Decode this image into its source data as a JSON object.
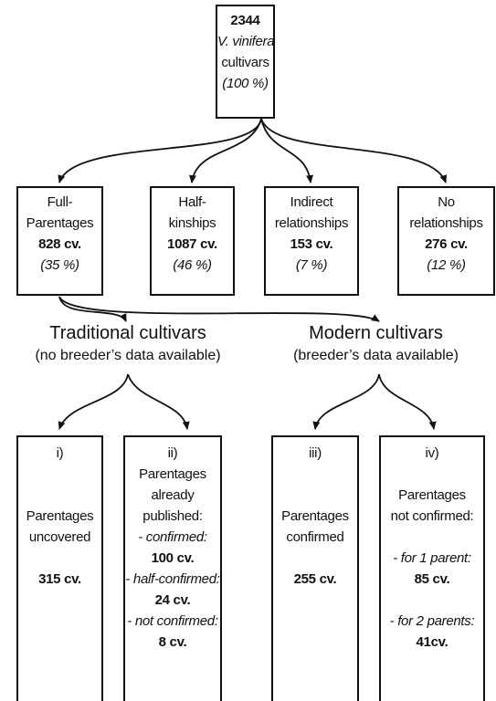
{
  "root": {
    "count": "2344",
    "species": "V. vinifera",
    "label": "cultivars",
    "percent": "(100 %)"
  },
  "groups": [
    {
      "label_lines": [
        "Full-",
        "Parentages"
      ],
      "count": "828 cv.",
      "percent": "(35 %)"
    },
    {
      "label_lines": [
        "Half-",
        "kinships"
      ],
      "count": "1087 cv.",
      "percent": "(46 %)"
    },
    {
      "label_lines": [
        "Indirect",
        "relationships"
      ],
      "count": "153 cv.",
      "percent": "(7 %)"
    },
    {
      "label_lines": [
        "No",
        "relationships"
      ],
      "count": "276 cv.",
      "percent": "(12 %)"
    }
  ],
  "sections": [
    {
      "title": "Traditional cultivars",
      "subtitle": "(no breeder’s data available)"
    },
    {
      "title": "Modern cultivars",
      "subtitle": "(breeder’s data available)"
    }
  ],
  "outcomes": [
    {
      "number": "i)",
      "lines": [
        "Parentages",
        "uncovered"
      ],
      "items": [
        {
          "count": "315 cv."
        }
      ]
    },
    {
      "number": "ii)",
      "lines": [
        "Parentages",
        "already",
        "published:"
      ],
      "items": [
        {
          "label": "- confirmed:",
          "count": "100 cv."
        },
        {
          "label": "- half-confirmed:",
          "count": "24 cv."
        },
        {
          "label": "- not confirmed:",
          "count": "8 cv."
        }
      ]
    },
    {
      "number": "iii)",
      "lines": [
        "Parentages",
        "confirmed"
      ],
      "items": [
        {
          "count": "255 cv."
        }
      ]
    },
    {
      "number": "iv)",
      "lines": [
        "Parentages",
        "not confirmed:"
      ],
      "items": [
        {
          "label": "- for 1 parent:",
          "count": "85 cv."
        },
        {
          "label": "- for 2 parents:",
          "count": "41cv."
        }
      ]
    }
  ]
}
